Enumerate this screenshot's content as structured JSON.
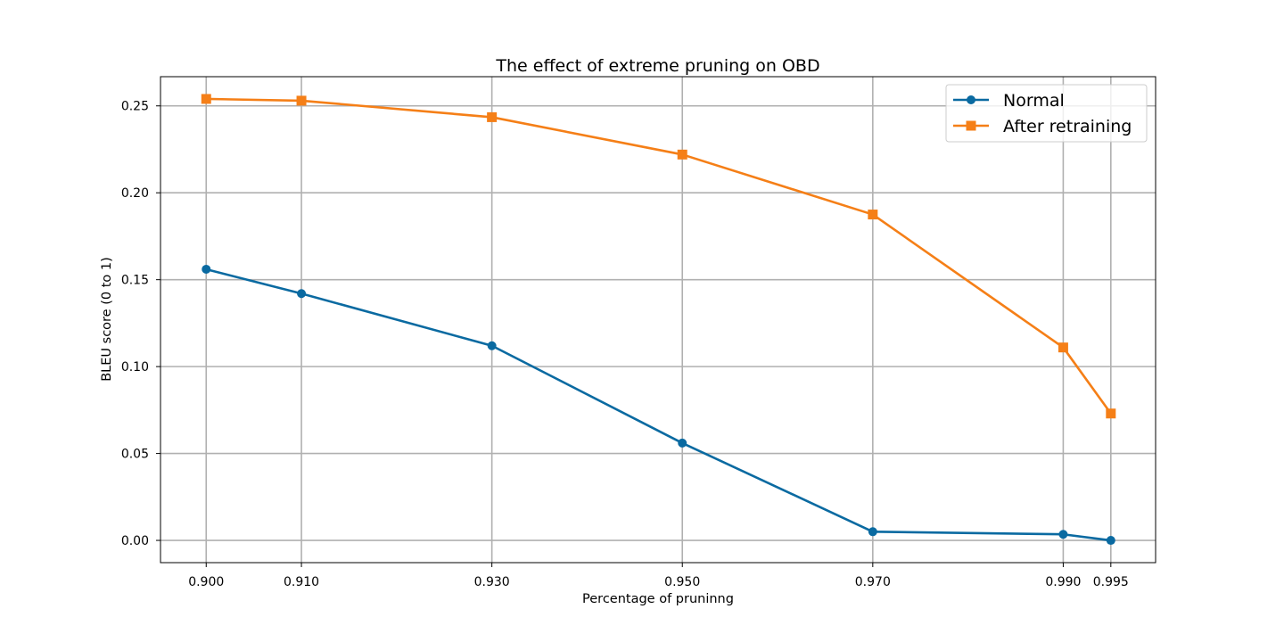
{
  "chart_data": {
    "type": "line",
    "title": "The effect of extreme pruning  on OBD",
    "xlabel": "Percentage of pruninng",
    "ylabel": "BLEU score (0 to 1)",
    "x": [
      0.9,
      0.91,
      0.93,
      0.95,
      0.97,
      0.99,
      0.995
    ],
    "x_tick_labels": [
      "0.900",
      "0.910",
      "0.930",
      "0.950",
      "0.970",
      "0.990",
      "0.995"
    ],
    "xlim": [
      0.8952,
      0.9997
    ],
    "ylim": [
      -0.0128,
      0.2668
    ],
    "y_ticks": [
      0.0,
      0.05,
      0.1,
      0.15,
      0.2,
      0.25
    ],
    "y_tick_labels": [
      "0.00",
      "0.05",
      "0.10",
      "0.15",
      "0.20",
      "0.25"
    ],
    "grid": true,
    "legend_position": "top-right",
    "series": [
      {
        "name": "Normal",
        "marker": "circle",
        "color": "#0a6aa1",
        "values": [
          0.156,
          0.142,
          0.112,
          0.056,
          0.005,
          0.0035,
          0.0
        ]
      },
      {
        "name": "After retraining",
        "marker": "square",
        "color": "#f57f17",
        "values": [
          0.254,
          0.253,
          0.2435,
          0.222,
          0.1875,
          0.111,
          0.073
        ]
      }
    ]
  }
}
